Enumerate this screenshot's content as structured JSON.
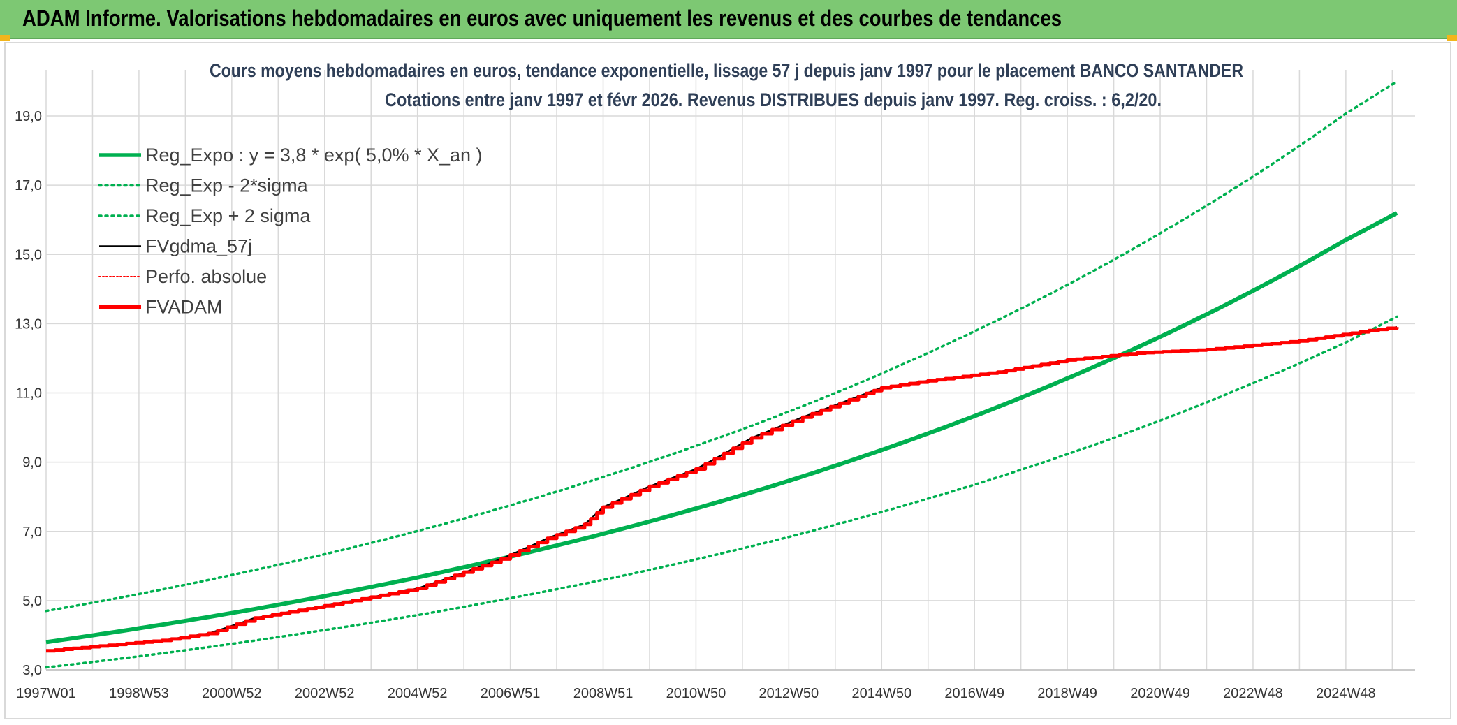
{
  "header": {
    "title": "ADAM Informe. Valorisations hebdomadaires en euros avec uniquement les revenus et des courbes de tendances"
  },
  "colors": {
    "banner": "#7dc873",
    "green": "#00b050",
    "red": "#ff0000",
    "black": "#000000",
    "grid": "#d9d9d9",
    "title": "#2f3f57"
  },
  "chart_data": {
    "type": "line",
    "title": "Cours moyens hebdomadaires en euros, tendance exponentielle, lissage 57 j depuis janv 1997 pour le placement BANCO SANTANDER",
    "subtitle": "Cotations entre janv 1997 et févr 2026. Revenus DISTRIBUES depuis janv 1997. Reg. croiss. : 6,2/20.",
    "xlabel": "",
    "ylabel": "",
    "xlim": [
      1997.0,
      2026.1
    ],
    "ylim": [
      3.0,
      20.0
    ],
    "y_ticks": [
      {
        "value": 3,
        "label": "3,0"
      },
      {
        "value": 5,
        "label": "5,0"
      },
      {
        "value": 7,
        "label": "7,0"
      },
      {
        "value": 9,
        "label": "9,0"
      },
      {
        "value": 11,
        "label": "11,0"
      },
      {
        "value": 13,
        "label": "13,0"
      },
      {
        "value": 15,
        "label": "15,0"
      },
      {
        "value": 17,
        "label": "17,0"
      },
      {
        "value": 19,
        "label": "19,0"
      }
    ],
    "x_ticks": [
      {
        "value": 1997.0,
        "label": "1997W01"
      },
      {
        "value": 1999.0,
        "label": "1998W53"
      },
      {
        "value": 2001.0,
        "label": "2000W52"
      },
      {
        "value": 2003.0,
        "label": "2002W52"
      },
      {
        "value": 2005.0,
        "label": "2004W52"
      },
      {
        "value": 2007.0,
        "label": "2006W51"
      },
      {
        "value": 2009.0,
        "label": "2008W51"
      },
      {
        "value": 2011.0,
        "label": "2010W50"
      },
      {
        "value": 2013.0,
        "label": "2012W50"
      },
      {
        "value": 2015.0,
        "label": "2014W50"
      },
      {
        "value": 2017.0,
        "label": "2016W49"
      },
      {
        "value": 2019.0,
        "label": "2018W49"
      },
      {
        "value": 2021.0,
        "label": "2020W49"
      },
      {
        "value": 2023.0,
        "label": "2022W48"
      },
      {
        "value": 2025.0,
        "label": "2024W48"
      }
    ],
    "grid": true,
    "legend_position": "top-left",
    "series": [
      {
        "name": "Reg_Expo : y = 3,8 * exp( 5,0% *  X_an )",
        "color": "#00b050",
        "style": "solid-thick",
        "x": [
          1997,
          1999,
          2001,
          2003,
          2005,
          2007,
          2009,
          2011,
          2013,
          2015,
          2017,
          2019,
          2021,
          2023,
          2025,
          2026.1
        ],
        "y": [
          3.8,
          4.2,
          4.64,
          5.13,
          5.67,
          6.27,
          6.93,
          7.66,
          8.46,
          9.35,
          10.33,
          11.42,
          12.62,
          13.95,
          15.42,
          16.2
        ]
      },
      {
        "name": "Reg_Exp - 2*sigma",
        "color": "#00b050",
        "style": "dotted",
        "x": [
          1997,
          1999,
          2001,
          2003,
          2005,
          2007,
          2009,
          2011,
          2013,
          2015,
          2017,
          2019,
          2021,
          2023,
          2025,
          2026.1
        ],
        "y": [
          3.07,
          3.39,
          3.75,
          4.15,
          4.58,
          5.07,
          5.6,
          6.19,
          6.84,
          7.56,
          8.35,
          9.23,
          10.2,
          11.28,
          12.46,
          13.2
        ]
      },
      {
        "name": "Reg_Exp + 2 sigma",
        "color": "#00b050",
        "style": "dotted",
        "x": [
          1997,
          1999,
          2001,
          2003,
          2005,
          2007,
          2009,
          2011,
          2013,
          2015,
          2017,
          2019,
          2021,
          2023,
          2025,
          2026.1
        ],
        "y": [
          4.7,
          5.19,
          5.74,
          6.34,
          7.01,
          7.75,
          8.57,
          9.47,
          10.46,
          11.56,
          12.78,
          14.12,
          15.61,
          17.25,
          19.07,
          20.0
        ]
      },
      {
        "name": "FVgdma_57j",
        "color": "#000000",
        "style": "solid",
        "x": [
          1997,
          1999.5,
          2000.5,
          2001.5,
          2003,
          2005,
          2006.8,
          2007.8,
          2008.6,
          2009.0,
          2010,
          2011,
          2012.2,
          2013.3,
          2014.5,
          2015.0,
          2016.0,
          2017.5,
          2019.0,
          2020.5,
          2022.0,
          2024.0,
          2025.5,
          2026.1
        ],
        "y": [
          3.55,
          3.85,
          4.05,
          4.5,
          4.85,
          5.35,
          6.2,
          6.8,
          7.2,
          7.7,
          8.3,
          8.8,
          9.7,
          10.3,
          10.9,
          11.15,
          11.35,
          11.6,
          11.95,
          12.15,
          12.25,
          12.5,
          12.8,
          12.9
        ]
      },
      {
        "name": "Perfo. absolue",
        "color": "#ff0000",
        "style": "dotted-thin",
        "x": [],
        "y": []
      },
      {
        "name": "FVADAM",
        "color": "#ff0000",
        "style": "solid-thick-step",
        "x": [
          1997,
          1999.5,
          2000.5,
          2001.5,
          2003,
          2005,
          2006.8,
          2007.8,
          2008.6,
          2009.0,
          2010,
          2011,
          2012.2,
          2013.3,
          2014.5,
          2015.0,
          2016.0,
          2017.5,
          2019.0,
          2020.5,
          2022.0,
          2024.0,
          2025.5,
          2026.1
        ],
        "y": [
          3.55,
          3.85,
          4.05,
          4.5,
          4.85,
          5.35,
          6.2,
          6.8,
          7.2,
          7.7,
          8.3,
          8.8,
          9.7,
          10.3,
          10.9,
          11.15,
          11.35,
          11.6,
          11.95,
          12.15,
          12.25,
          12.5,
          12.8,
          12.9
        ]
      }
    ]
  }
}
